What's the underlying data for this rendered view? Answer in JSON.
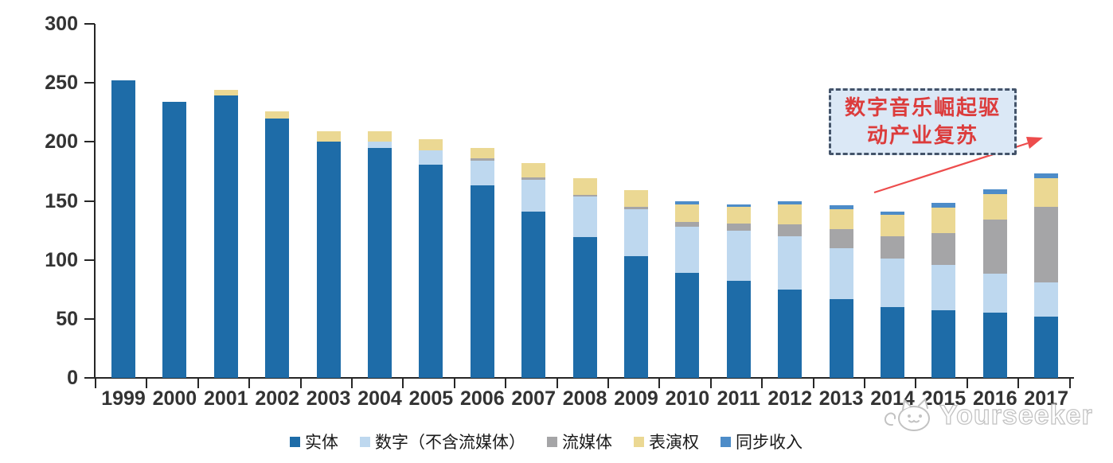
{
  "chart_data": {
    "type": "bar",
    "stacked": true,
    "title": "",
    "xlabel": "",
    "ylabel": "",
    "categories": [
      "1999",
      "2000",
      "2001",
      "2002",
      "2003",
      "2004",
      "2005",
      "2006",
      "2007",
      "2008",
      "2009",
      "2010",
      "2011",
      "2012",
      "2013",
      "2014",
      "2015",
      "2016",
      "2017"
    ],
    "series": [
      {
        "name": "实体",
        "color": "#1E6CA8",
        "values": [
          252,
          234,
          239,
          220,
          200,
          195,
          181,
          163,
          141,
          119,
          103,
          89,
          82,
          75,
          67,
          60,
          57,
          55,
          52
        ]
      },
      {
        "name": "数字（不含流媒体）",
        "color": "#BED8EF",
        "values": [
          0,
          0,
          0,
          0,
          0,
          5,
          12,
          21,
          27,
          35,
          40,
          39,
          43,
          45,
          43,
          41,
          39,
          33,
          29
        ]
      },
      {
        "name": "流媒体",
        "color": "#A5A5A7",
        "values": [
          0,
          0,
          0,
          0,
          0,
          0,
          0,
          2,
          2,
          1,
          2,
          4,
          6,
          10,
          16,
          19,
          27,
          46,
          64
        ]
      },
      {
        "name": "表演权",
        "color": "#EBD893",
        "values": [
          0,
          0,
          5,
          6,
          9,
          9,
          9,
          9,
          12,
          14,
          14,
          15,
          14,
          17,
          17,
          18,
          21,
          22,
          24
        ]
      },
      {
        "name": "同步收入",
        "color": "#4D8CC8",
        "values": [
          0,
          0,
          0,
          0,
          0,
          0,
          0,
          0,
          0,
          0,
          0,
          3,
          2,
          3,
          3,
          3,
          4,
          4,
          4
        ]
      }
    ],
    "ylim": [
      0,
      300
    ],
    "yticks": [
      0,
      50,
      100,
      150,
      200,
      250,
      300
    ],
    "grid": false,
    "legend_position": "bottom"
  },
  "annotation": {
    "line1": "数字音乐崛起驱",
    "line2": "动产业复苏",
    "text_color": "#DC3C3C",
    "box_fill": "#DBE8F6",
    "box_border": "#44546A",
    "arrow_color": "#ED4C4C"
  },
  "watermark": {
    "text": "Yourseeker"
  },
  "colors": {
    "axis": "#262626",
    "tick_label": "#333333"
  }
}
